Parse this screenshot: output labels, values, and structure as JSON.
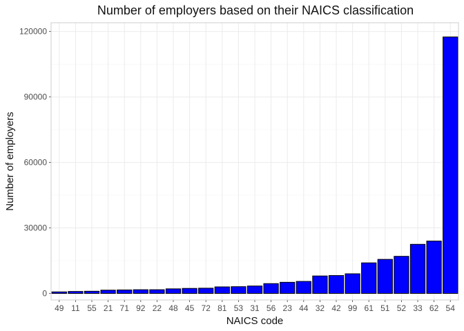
{
  "chart_data": {
    "type": "bar",
    "title": "Number of employers based on their NAICS classification",
    "xlabel": "NAICS code",
    "ylabel": "Number of employers",
    "categories": [
      "49",
      "11",
      "55",
      "21",
      "71",
      "92",
      "22",
      "48",
      "45",
      "72",
      "81",
      "53",
      "31",
      "56",
      "23",
      "44",
      "32",
      "42",
      "99",
      "61",
      "51",
      "52",
      "33",
      "62",
      "54"
    ],
    "values": [
      700,
      900,
      1000,
      1500,
      1600,
      1700,
      1700,
      2100,
      2300,
      2400,
      3000,
      3100,
      3400,
      4500,
      5100,
      5500,
      8000,
      8200,
      9000,
      14000,
      15600,
      17000,
      22500,
      24000,
      117500
    ],
    "ylim": [
      -3000,
      124000
    ],
    "yticks": [
      0,
      30000,
      60000,
      90000,
      120000
    ],
    "ytick_labels": [
      "0",
      "30000",
      "60000",
      "90000",
      "120000"
    ],
    "grid": true,
    "bar_fill": "#0000ff",
    "bar_edge": "#000000",
    "panel_border": "#cccccc",
    "grid_major": "#ebebeb",
    "grid_minor": "#f4f4f4"
  }
}
